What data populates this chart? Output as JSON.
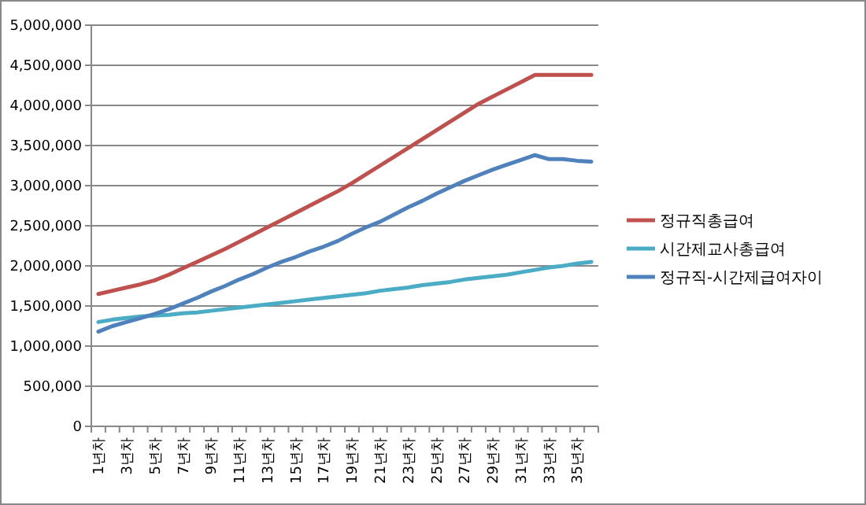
{
  "chart_data": {
    "type": "line",
    "categories": [
      "1년차",
      null,
      "3년차",
      null,
      "5년차",
      null,
      "7년차",
      null,
      "9년차",
      null,
      "11년차",
      null,
      "13년차",
      null,
      "15년차",
      null,
      "17년차",
      null,
      "19년차",
      null,
      "21년차",
      null,
      "23년차",
      null,
      "25년차",
      null,
      "27년차",
      null,
      "29년차",
      null,
      "31년차",
      null,
      "33년차",
      null,
      "35년차",
      null
    ],
    "series": [
      {
        "name": "정규직총급여",
        "color": "#c0504d",
        "values": [
          1650000,
          1690000,
          1730000,
          1770000,
          1820000,
          1890000,
          1970000,
          2050000,
          2130000,
          2210000,
          2300000,
          2390000,
          2480000,
          2570000,
          2660000,
          2750000,
          2840000,
          2930000,
          3030000,
          3140000,
          3250000,
          3360000,
          3470000,
          3580000,
          3690000,
          3800000,
          3910000,
          4020000,
          4110000,
          4200000,
          4290000,
          4380000,
          4380000,
          4380000,
          4380000,
          4380000
        ]
      },
      {
        "name": "시간제교사총급여",
        "color": "#4bacc6",
        "values": [
          1300000,
          1330000,
          1350000,
          1370000,
          1380000,
          1390000,
          1410000,
          1420000,
          1440000,
          1460000,
          1480000,
          1500000,
          1520000,
          1540000,
          1560000,
          1580000,
          1600000,
          1620000,
          1640000,
          1660000,
          1690000,
          1710000,
          1730000,
          1760000,
          1780000,
          1800000,
          1830000,
          1850000,
          1870000,
          1890000,
          1920000,
          1950000,
          1980000,
          2000000,
          2030000,
          2050000
        ]
      },
      {
        "name": "정규직-시간제급여자이",
        "color": "#4f81bd",
        "values": [
          1180000,
          1250000,
          1300000,
          1350000,
          1400000,
          1460000,
          1530000,
          1600000,
          1680000,
          1750000,
          1830000,
          1900000,
          1980000,
          2050000,
          2110000,
          2180000,
          2240000,
          2310000,
          2400000,
          2480000,
          2550000,
          2640000,
          2730000,
          2810000,
          2900000,
          2980000,
          3060000,
          3130000,
          3200000,
          3260000,
          3320000,
          3380000,
          3330000,
          3330000,
          3310000,
          3300000
        ]
      }
    ],
    "ylim": [
      0,
      5000000
    ],
    "yticks": [
      0,
      {
        "value": 500000,
        "label": "500,000"
      },
      {
        "value": 1000000,
        "label": "1,000,000"
      },
      {
        "value": 1500000,
        "label": "1,500,000"
      },
      {
        "value": 2000000,
        "label": "2,000,000"
      },
      {
        "value": 2500000,
        "label": "2,500,000"
      },
      {
        "value": 3000000,
        "label": "3,000,000"
      },
      {
        "value": 3500000,
        "label": "3,500,000"
      },
      {
        "value": 4000000,
        "label": "4,000,000"
      },
      {
        "value": 4500000,
        "label": "4,500,000"
      },
      {
        "value": 5000000,
        "label": "5,000,000"
      }
    ],
    "grid": "y",
    "legend": "right",
    "marker": "none",
    "line_style": "solid"
  }
}
